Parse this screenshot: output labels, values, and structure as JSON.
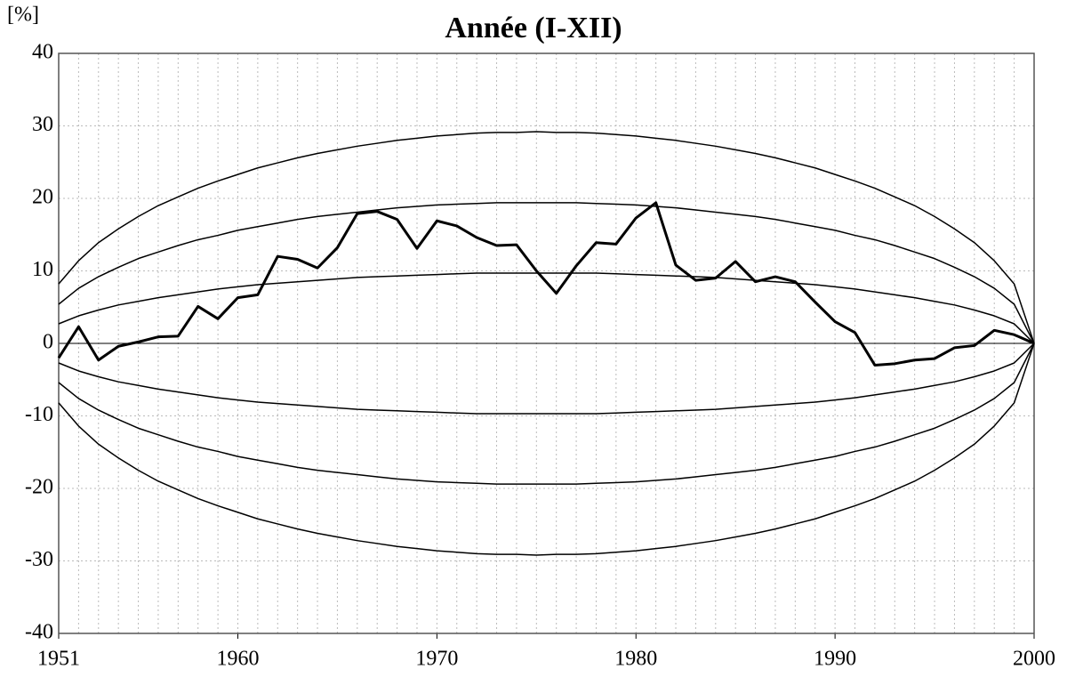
{
  "chart_data": {
    "type": "line",
    "title": "Année (I-XII)",
    "y_label": "[%]",
    "x": [
      1951,
      1952,
      1953,
      1954,
      1955,
      1956,
      1957,
      1958,
      1959,
      1960,
      1961,
      1962,
      1963,
      1964,
      1965,
      1966,
      1967,
      1968,
      1969,
      1970,
      1971,
      1972,
      1973,
      1974,
      1975,
      1976,
      1977,
      1978,
      1979,
      1980,
      1981,
      1982,
      1983,
      1984,
      1985,
      1986,
      1987,
      1988,
      1989,
      1990,
      1991,
      1992,
      1993,
      1994,
      1995,
      1996,
      1997,
      1998,
      1999,
      2000
    ],
    "xlim": [
      1951,
      2000
    ],
    "xticks": [
      1951,
      1960,
      1970,
      1980,
      1990,
      2000
    ],
    "ylim": [
      -40,
      40
    ],
    "yticks": [
      -40,
      -30,
      -20,
      -10,
      0,
      10,
      20,
      30,
      40
    ],
    "grid": true,
    "series": [
      {
        "color": "#000000",
        "line_width": 3,
        "values": [
          -2,
          2.3,
          -2.3,
          -0.4,
          0.2,
          0.9,
          1.0,
          5.1,
          3.4,
          6.3,
          6.7,
          12.0,
          11.6,
          10.4,
          13.2,
          17.9,
          18.2,
          17.1,
          13.1,
          16.9,
          16.2,
          14.6,
          13.5,
          13.6,
          10.0,
          6.9,
          10.7,
          13.9,
          13.7,
          17.3,
          19.4,
          10.8,
          8.7,
          9.0,
          11.3,
          8.5,
          9.2,
          8.5,
          5.7,
          3.0,
          1.5,
          -3.0,
          -2.8,
          -2.3,
          -2.1,
          -0.6,
          -0.3,
          1.8,
          1.2,
          0
        ]
      },
      {
        "color": "#000000",
        "line_width": 1.5,
        "values": [
          2.7,
          3.8,
          4.6,
          5.3,
          5.8,
          6.3,
          6.7,
          7.1,
          7.5,
          7.8,
          8.1,
          8.3,
          8.5,
          8.7,
          8.9,
          9.1,
          9.2,
          9.3,
          9.4,
          9.5,
          9.6,
          9.7,
          9.7,
          9.7,
          9.7,
          9.7,
          9.7,
          9.7,
          9.6,
          9.5,
          9.4,
          9.3,
          9.2,
          9.1,
          8.9,
          8.7,
          8.5,
          8.3,
          8.1,
          7.8,
          7.5,
          7.1,
          6.7,
          6.3,
          5.8,
          5.3,
          4.6,
          3.8,
          2.7,
          0
        ]
      },
      {
        "color": "#000000",
        "line_width": 1.5,
        "values": [
          -2.7,
          -3.8,
          -4.6,
          -5.3,
          -5.8,
          -6.3,
          -6.7,
          -7.1,
          -7.5,
          -7.8,
          -8.1,
          -8.3,
          -8.5,
          -8.7,
          -8.9,
          -9.1,
          -9.2,
          -9.3,
          -9.4,
          -9.5,
          -9.6,
          -9.7,
          -9.7,
          -9.7,
          -9.7,
          -9.7,
          -9.7,
          -9.7,
          -9.6,
          -9.5,
          -9.4,
          -9.3,
          -9.2,
          -9.1,
          -8.9,
          -8.7,
          -8.5,
          -8.3,
          -8.1,
          -7.8,
          -7.5,
          -7.1,
          -6.7,
          -6.3,
          -5.8,
          -5.3,
          -4.6,
          -3.8,
          -2.7,
          0
        ]
      },
      {
        "color": "#000000",
        "line_width": 1.5,
        "values": [
          5.4,
          7.6,
          9.2,
          10.5,
          11.7,
          12.6,
          13.5,
          14.3,
          14.9,
          15.6,
          16.1,
          16.6,
          17.1,
          17.5,
          17.8,
          18.1,
          18.4,
          18.7,
          18.9,
          19.1,
          19.2,
          19.3,
          19.4,
          19.4,
          19.4,
          19.4,
          19.4,
          19.3,
          19.2,
          19.1,
          18.9,
          18.7,
          18.4,
          18.1,
          17.8,
          17.5,
          17.1,
          16.6,
          16.1,
          15.6,
          14.9,
          14.3,
          13.5,
          12.6,
          11.7,
          10.5,
          9.2,
          7.6,
          5.4,
          0
        ]
      },
      {
        "color": "#000000",
        "line_width": 1.5,
        "values": [
          -5.4,
          -7.6,
          -9.2,
          -10.5,
          -11.7,
          -12.6,
          -13.5,
          -14.3,
          -14.9,
          -15.6,
          -16.1,
          -16.6,
          -17.1,
          -17.5,
          -17.8,
          -18.1,
          -18.4,
          -18.7,
          -18.9,
          -19.1,
          -19.2,
          -19.3,
          -19.4,
          -19.4,
          -19.4,
          -19.4,
          -19.4,
          -19.3,
          -19.2,
          -19.1,
          -18.9,
          -18.7,
          -18.4,
          -18.1,
          -17.8,
          -17.5,
          -17.1,
          -16.6,
          -16.1,
          -15.6,
          -14.9,
          -14.3,
          -13.5,
          -12.6,
          -11.7,
          -10.5,
          -9.2,
          -7.6,
          -5.4,
          0
        ]
      },
      {
        "color": "#000000",
        "line_width": 1.5,
        "values": [
          8.2,
          11.4,
          13.9,
          15.8,
          17.5,
          19.0,
          20.2,
          21.4,
          22.4,
          23.3,
          24.2,
          24.9,
          25.6,
          26.2,
          26.7,
          27.2,
          27.6,
          28.0,
          28.3,
          28.6,
          28.8,
          29.0,
          29.1,
          29.1,
          29.2,
          29.1,
          29.1,
          29.0,
          28.8,
          28.6,
          28.3,
          28.0,
          27.6,
          27.2,
          26.7,
          26.2,
          25.6,
          24.9,
          24.2,
          23.3,
          22.4,
          21.4,
          20.2,
          19.0,
          17.5,
          15.8,
          13.9,
          11.4,
          8.2,
          0
        ]
      },
      {
        "color": "#000000",
        "line_width": 1.5,
        "values": [
          -8.2,
          -11.4,
          -13.9,
          -15.8,
          -17.5,
          -19.0,
          -20.2,
          -21.4,
          -22.4,
          -23.3,
          -24.2,
          -24.9,
          -25.6,
          -26.2,
          -26.7,
          -27.2,
          -27.6,
          -28.0,
          -28.3,
          -28.6,
          -28.8,
          -29.0,
          -29.1,
          -29.1,
          -29.2,
          -29.1,
          -29.1,
          -29.0,
          -28.8,
          -28.6,
          -28.3,
          -28.0,
          -27.6,
          -27.2,
          -26.7,
          -26.2,
          -25.6,
          -24.9,
          -24.2,
          -23.3,
          -22.4,
          -21.4,
          -20.2,
          -19.0,
          -17.5,
          -15.8,
          -13.9,
          -11.4,
          -8.2,
          0
        ]
      }
    ]
  }
}
